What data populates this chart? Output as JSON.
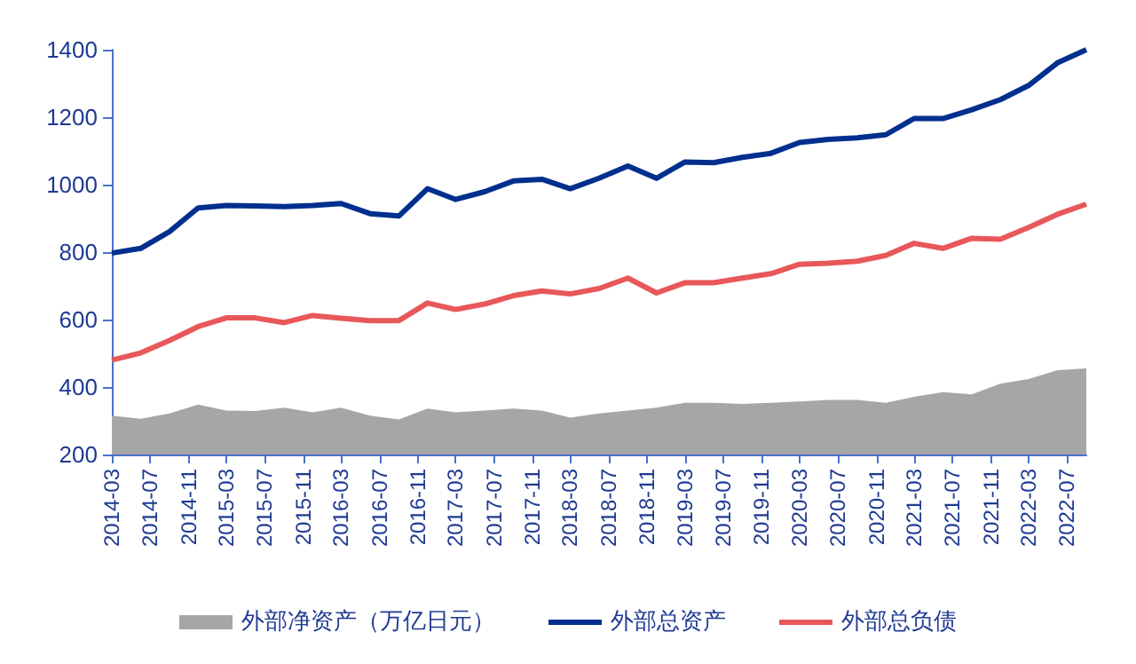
{
  "chart_data": {
    "type": "line",
    "x": [
      "2014-03",
      "2014-06",
      "2014-09",
      "2014-12",
      "2015-03",
      "2015-06",
      "2015-09",
      "2015-12",
      "2016-03",
      "2016-06",
      "2016-09",
      "2016-12",
      "2017-03",
      "2017-06",
      "2017-09",
      "2017-12",
      "2018-03",
      "2018-06",
      "2018-09",
      "2018-12",
      "2019-03",
      "2019-06",
      "2019-09",
      "2019-12",
      "2020-03",
      "2020-06",
      "2020-09",
      "2020-12",
      "2021-03",
      "2021-06",
      "2021-09",
      "2021-12",
      "2022-03",
      "2022-06",
      "2022-09"
    ],
    "series": [
      {
        "name": "外部净资产（万亿日元）",
        "type": "area",
        "color": "#a6a6a6",
        "values": [
          315,
          306,
          322,
          348,
          330,
          329,
          339,
          325,
          339,
          315,
          304,
          336,
          325,
          330,
          336,
          330,
          309,
          322,
          330,
          339,
          353,
          353,
          350,
          353,
          357,
          362,
          362,
          353,
          371,
          385,
          378,
          410,
          424,
          450,
          455
        ]
      },
      {
        "name": "外部总资产",
        "color": "#002f8e",
        "values": [
          797,
          811,
          861,
          931,
          938,
          937,
          935,
          938,
          944,
          914,
          907,
          988,
          956,
          979,
          1011,
          1016,
          988,
          1019,
          1055,
          1019,
          1067,
          1065,
          1081,
          1093,
          1125,
          1134,
          1139,
          1148,
          1196,
          1196,
          1222,
          1252,
          1294,
          1361,
          1400
        ]
      },
      {
        "name": "外部总负债",
        "color": "#e8585a",
        "values": [
          480,
          501,
          538,
          579,
          605,
          605,
          591,
          612,
          604,
          597,
          597,
          649,
          630,
          646,
          671,
          685,
          676,
          692,
          723,
          679,
          709,
          709,
          723,
          736,
          764,
          767,
          773,
          790,
          826,
          811,
          841,
          838,
          873,
          912,
          942
        ]
      }
    ],
    "xlim": [
      "2014-03",
      "2022-09"
    ],
    "xticks": [
      "2014-03",
      "2014-07",
      "2014-11",
      "2015-03",
      "2015-07",
      "2015-11",
      "2016-03",
      "2016-07",
      "2016-11",
      "2017-03",
      "2017-07",
      "2017-11",
      "2018-03",
      "2018-07",
      "2018-11",
      "2019-03",
      "2019-07",
      "2019-11",
      "2020-03",
      "2020-07",
      "2020-11",
      "2021-03",
      "2021-07",
      "2021-11",
      "2022-03",
      "2022-07"
    ],
    "ylim": [
      200,
      1400
    ],
    "yticks": [
      200,
      400,
      600,
      800,
      1000,
      1200,
      1400
    ],
    "grid": false,
    "legend": "bottom"
  }
}
